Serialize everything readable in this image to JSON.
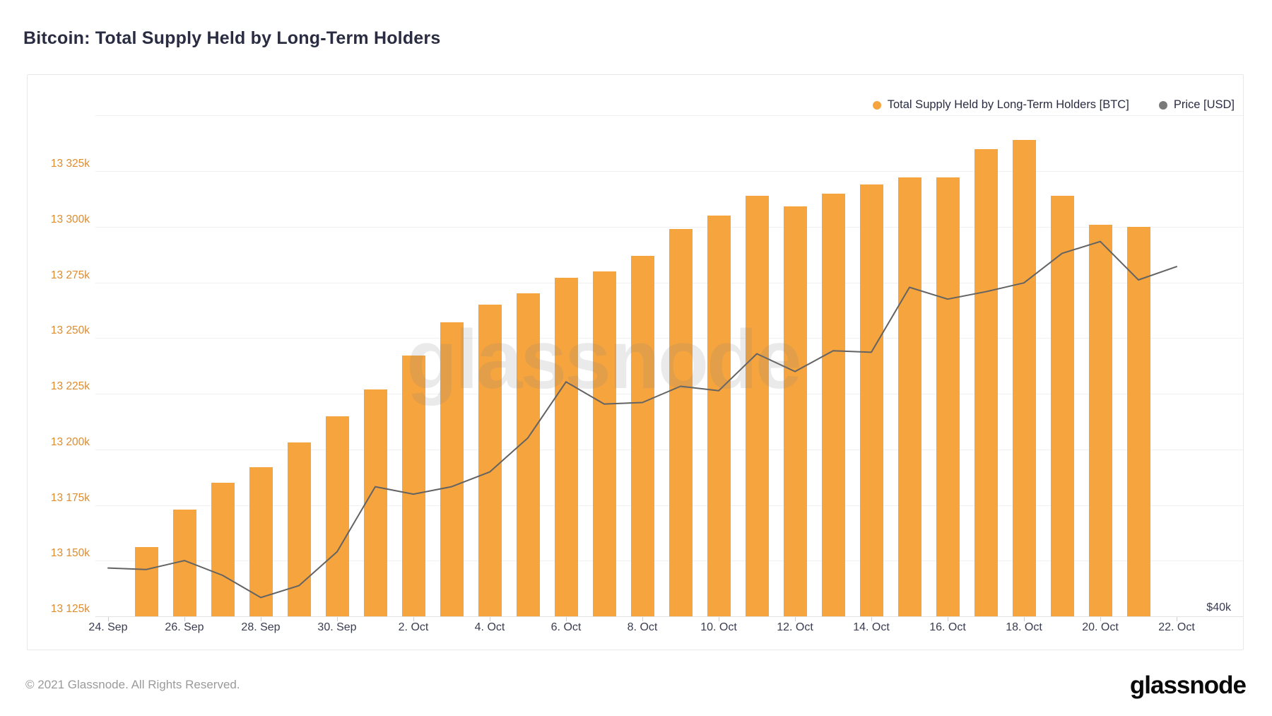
{
  "page": {
    "title": "Bitcoin: Total Supply Held by Long-Term Holders",
    "watermark": "glassnode",
    "footer": {
      "copyright": "© 2021 Glassnode. All Rights Reserved.",
      "logo_text": "glassnode"
    }
  },
  "legend": {
    "items": [
      {
        "label": "Total Supply Held by Long-Term Holders [BTC]",
        "color": "#f6a53e"
      },
      {
        "label": "Price [USD]",
        "color": "#7a7a7a"
      }
    ]
  },
  "chart_data": {
    "type": "bar+line",
    "title": "Bitcoin: Total Supply Held by Long-Term Holders",
    "x": [
      "Sep 24",
      "Sep 25",
      "Sep 26",
      "Sep 27",
      "Sep 28",
      "Sep 29",
      "Sep 30",
      "Oct 1",
      "Oct 2",
      "Oct 3",
      "Oct 4",
      "Oct 5",
      "Oct 6",
      "Oct 7",
      "Oct 8",
      "Oct 9",
      "Oct 10",
      "Oct 11",
      "Oct 12",
      "Oct 13",
      "Oct 14",
      "Oct 15",
      "Oct 16",
      "Oct 17",
      "Oct 18",
      "Oct 19",
      "Oct 20",
      "Oct 21",
      "Oct 22"
    ],
    "x_tick_labels": [
      {
        "i": 0,
        "t": "24. Sep"
      },
      {
        "i": 2,
        "t": "26. Sep"
      },
      {
        "i": 4,
        "t": "28. Sep"
      },
      {
        "i": 6,
        "t": "30. Sep"
      },
      {
        "i": 8,
        "t": "2. Oct"
      },
      {
        "i": 10,
        "t": "4. Oct"
      },
      {
        "i": 12,
        "t": "6. Oct"
      },
      {
        "i": 14,
        "t": "8. Oct"
      },
      {
        "i": 16,
        "t": "10. Oct"
      },
      {
        "i": 18,
        "t": "12. Oct"
      },
      {
        "i": 20,
        "t": "14. Oct"
      },
      {
        "i": 22,
        "t": "16. Oct"
      },
      {
        "i": 24,
        "t": "18. Oct"
      },
      {
        "i": 26,
        "t": "20. Oct"
      },
      {
        "i": 28,
        "t": "22. Oct"
      }
    ],
    "series": [
      {
        "name": "Total Supply Held by Long-Term Holders [BTC]",
        "type": "bar",
        "color": "#f6a53e",
        "unit": "thousand BTC",
        "values": [
          null,
          13156,
          13173,
          13185,
          13192,
          13203,
          13215,
          13227,
          13242,
          13257,
          13265,
          13270,
          13277,
          13280,
          13287,
          13299,
          13305,
          13314,
          13309,
          13315,
          13319,
          13322,
          13322,
          13335,
          13339,
          13314,
          13301,
          13300,
          null
        ]
      },
      {
        "name": "Price [USD]",
        "type": "line",
        "color": "#636363",
        "unit": "thousand USD",
        "values": [
          42.7,
          42.6,
          43.2,
          42.2,
          40.7,
          41.5,
          43.8,
          48.2,
          47.7,
          48.2,
          49.2,
          51.5,
          55.3,
          53.8,
          53.9,
          55.0,
          54.7,
          57.2,
          56.0,
          57.4,
          57.3,
          61.7,
          60.9,
          61.4,
          62.0,
          64.0,
          64.8,
          62.2,
          63.1
        ]
      }
    ],
    "y_left_axis": {
      "unit": "thousand BTC",
      "labels": [
        {
          "v": 13325,
          "t": "13 325k"
        },
        {
          "v": 13300,
          "t": "13 300k"
        },
        {
          "v": 13275,
          "t": "13 275k"
        },
        {
          "v": 13250,
          "t": "13 250k"
        },
        {
          "v": 13225,
          "t": "13 225k"
        },
        {
          "v": 13200,
          "t": "13 200k"
        },
        {
          "v": 13175,
          "t": "13 175k"
        },
        {
          "v": 13150,
          "t": "13 150k"
        },
        {
          "v": 13125,
          "t": "13 125k"
        }
      ],
      "extra_gridline_value": 13350,
      "min": 13125,
      "max": 13350,
      "label_color": "#de8c2c"
    },
    "y_right_axis": {
      "visible_label": "$40k"
    },
    "grid": true,
    "legend_position": "top-right"
  }
}
